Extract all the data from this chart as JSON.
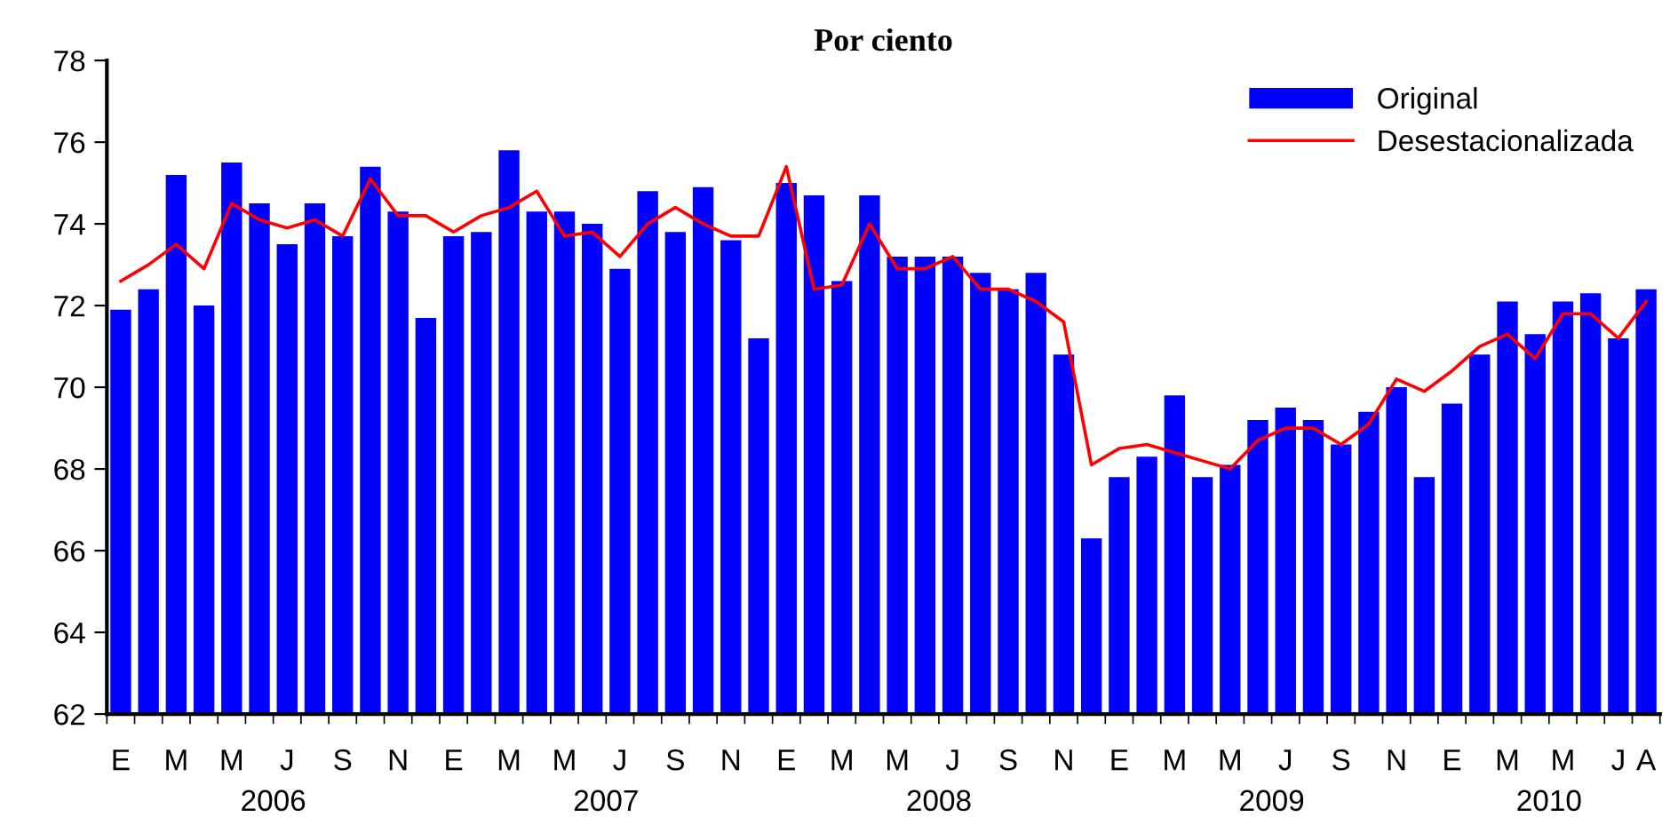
{
  "chart_data": {
    "type": "bar",
    "title": "Por ciento",
    "categories": [
      "E",
      null,
      "M",
      null,
      "M",
      null,
      "J",
      null,
      "S",
      null,
      "N",
      null,
      "E",
      null,
      "M",
      null,
      "M",
      null,
      "J",
      null,
      "S",
      null,
      "N",
      null,
      "E",
      null,
      "M",
      null,
      "M",
      null,
      "J",
      null,
      "S",
      null,
      "N",
      null,
      "E",
      null,
      "M",
      null,
      "M",
      null,
      "J",
      null,
      "S",
      null,
      "N",
      null,
      "E",
      null,
      "M",
      null,
      "M",
      null,
      "J",
      "A"
    ],
    "annotations": [
      "2006",
      "2007",
      "2008",
      "2009",
      "2010"
    ],
    "series": [
      {
        "name": "Original",
        "color": "#0000ff",
        "values": [
          71.9,
          72.4,
          75.2,
          72.0,
          75.5,
          74.5,
          73.5,
          74.5,
          73.7,
          75.4,
          74.3,
          71.7,
          73.7,
          73.8,
          75.8,
          74.3,
          74.3,
          74.0,
          72.9,
          74.8,
          73.8,
          74.9,
          73.6,
          71.2,
          75.0,
          74.7,
          72.6,
          74.7,
          73.2,
          73.2,
          73.2,
          72.8,
          72.4,
          72.8,
          70.8,
          66.3,
          67.8,
          68.3,
          69.8,
          67.8,
          68.1,
          69.2,
          69.5,
          69.2,
          68.6,
          69.4,
          70.0,
          67.8,
          69.6,
          70.8,
          72.1,
          71.3,
          72.1,
          72.3,
          71.2,
          72.4
        ]
      },
      {
        "name": "Desestacionalizada",
        "type": "line",
        "color": "#ff0000",
        "values": [
          72.6,
          73.0,
          73.5,
          72.9,
          74.5,
          74.1,
          73.9,
          74.1,
          73.7,
          75.1,
          74.2,
          74.2,
          73.8,
          74.2,
          74.4,
          74.8,
          73.7,
          73.8,
          73.2,
          74.0,
          74.4,
          74.0,
          73.7,
          73.7,
          75.4,
          72.4,
          72.5,
          74.0,
          72.9,
          72.9,
          73.2,
          72.4,
          72.4,
          72.1,
          71.6,
          68.1,
          68.5,
          68.6,
          68.4,
          68.2,
          68.0,
          68.7,
          69.0,
          69.0,
          68.6,
          69.1,
          70.2,
          69.9,
          70.4,
          71.0,
          71.3,
          70.7,
          71.8,
          71.8,
          71.2,
          72.1
        ]
      }
    ],
    "ylim": [
      62,
      78
    ],
    "yticks": [
      62,
      64,
      66,
      68,
      70,
      72,
      74,
      76,
      78
    ],
    "grid": false,
    "legend": "top right"
  }
}
